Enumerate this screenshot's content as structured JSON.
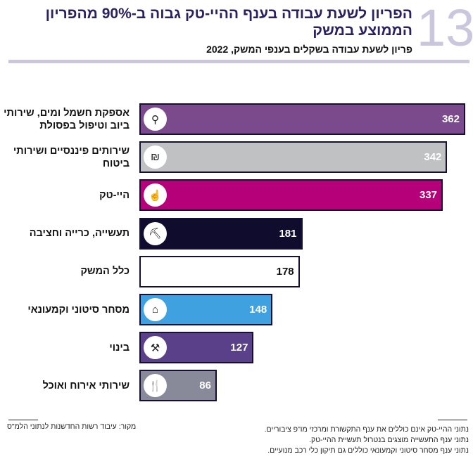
{
  "figure_number": "13",
  "title": "הפריון לשעת עבודה בענף ההיי-טק גבוה ב-90% מהפריון הממוצע במשק",
  "chart_data": {
    "type": "bar",
    "orientation": "horizontal",
    "subtitle": "פריון לשעת עבודה בשקלים בענפי המשק, 2022",
    "categories": [
      "אספקת חשמל ומים, שירותי ביוב וטיפול בפסולת",
      "שירותים פיננסיים ושירותי ביטוח",
      "היי-טק",
      "תעשייה, כרייה וחציבה",
      "כלל המשק",
      "מסחר סיטוני וקמעונאי",
      "בינוי",
      "שירותי אירוח ואוכל"
    ],
    "values": [
      362,
      342,
      337,
      181,
      178,
      148,
      127,
      86
    ],
    "colors": [
      "#7a4a8d",
      "#bfc1c3",
      "#b5007a",
      "#0f0c2e",
      "#ffffff",
      "#40a1e1",
      "#5a3f89",
      "#898a99"
    ],
    "value_colors": [
      "#fff",
      "#fff",
      "#fff",
      "#fff",
      "#111",
      "#fff",
      "#fff",
      "#fff"
    ],
    "icons": [
      "water-tap-icon",
      "money-bag-icon",
      "hand-chip-icon",
      "mining-pickaxe-icon",
      "",
      "store-icon",
      "crane-icon",
      "cutlery-icon"
    ],
    "xlim": [
      0,
      362
    ],
    "grid": false
  },
  "notes": [
    "נתוני ההיי-טק אינם כוללים את ענף התקשורת ומרכזי מו\"פ ציבוריים.",
    "נתוני ענף התעשייה מוצגים בנטרול תעשיית ההיי-טק.",
    "נתוני ענף מסחר סיטוני וקמעונאי כוללים גם תיקון כלי רכב מנועיים."
  ],
  "source": "מקור: עיבוד רשות החדשנות לנתוני הלמ\"ס"
}
